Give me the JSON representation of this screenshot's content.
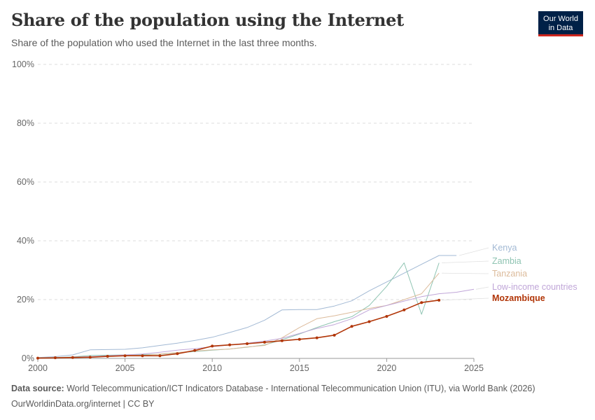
{
  "header": {
    "title": "Share of the population using the Internet",
    "subtitle": "Share of the population who used the Internet in the last three months.",
    "logo_line1": "Our World",
    "logo_line2": "in Data"
  },
  "footer": {
    "source_label": "Data source:",
    "source_text": "World Telecommunication/ICT Indicators Database - International Telecommunication Union (ITU), via World Bank (2026)",
    "url": "OurWorldinData.org/internet",
    "license": "| CC BY"
  },
  "colors": {
    "Kenya": "#a2b9d4",
    "Zambia": "#8fc4b2",
    "Tanzania": "#dcbb9b",
    "Low-income countries": "#c0a6d8",
    "Mozambique": "#b13507",
    "grid": "#dddddd",
    "axis_text": "#666666"
  },
  "chart_data": {
    "type": "line",
    "xlim": [
      2000,
      2025
    ],
    "ylim": [
      0,
      100
    ],
    "x_ticks": [
      2000,
      2005,
      2010,
      2015,
      2020,
      2025
    ],
    "x_tick_labels": [
      "2000",
      "2005",
      "2010",
      "2015",
      "2020",
      "2025"
    ],
    "y_ticks": [
      0,
      20,
      40,
      60,
      80,
      100
    ],
    "y_tick_labels": [
      "0%",
      "20%",
      "40%",
      "60%",
      "80%",
      "100%"
    ],
    "grid": true,
    "legend": "right-end labels",
    "series": [
      {
        "name": "Kenya",
        "x": [
          2000,
          2001,
          2002,
          2003,
          2004,
          2005,
          2006,
          2007,
          2008,
          2009,
          2010,
          2011,
          2012,
          2013,
          2014,
          2015,
          2016,
          2017,
          2018,
          2019,
          2020,
          2021,
          2022,
          2023,
          2024
        ],
        "y": [
          0.3,
          0.6,
          1.2,
          2.9,
          3.0,
          3.1,
          3.6,
          4.4,
          5.2,
          6.1,
          7.2,
          8.8,
          10.5,
          13.0,
          16.5,
          16.6,
          16.6,
          17.8,
          19.6,
          23.0,
          26.0,
          29.0,
          32.0,
          35.0,
          35.0
        ]
      },
      {
        "name": "Zambia",
        "x": [
          2000,
          2001,
          2002,
          2003,
          2004,
          2005,
          2006,
          2007,
          2008,
          2009,
          2010,
          2011,
          2012,
          2013,
          2014,
          2015,
          2016,
          2017,
          2018,
          2019,
          2020,
          2021,
          2022,
          2023
        ],
        "y": [
          0.2,
          0.3,
          0.5,
          1.0,
          1.1,
          1.2,
          1.3,
          1.4,
          1.9,
          2.3,
          2.8,
          3.2,
          3.8,
          4.6,
          6.3,
          8.3,
          10.5,
          12.5,
          14.2,
          18.0,
          24.5,
          32.5,
          15.0,
          32.5
        ]
      },
      {
        "name": "Tanzania",
        "x": [
          2000,
          2001,
          2002,
          2003,
          2004,
          2005,
          2006,
          2007,
          2008,
          2009,
          2010,
          2011,
          2012,
          2013,
          2014,
          2015,
          2016,
          2017,
          2018,
          2019,
          2020,
          2021,
          2022,
          2023
        ],
        "y": [
          0.1,
          0.2,
          0.2,
          0.5,
          0.7,
          1.1,
          1.0,
          1.5,
          2.0,
          2.5,
          2.9,
          3.2,
          3.9,
          4.4,
          7.0,
          10.5,
          13.5,
          14.5,
          15.7,
          17.0,
          18.0,
          20.0,
          22.0,
          29.0
        ]
      },
      {
        "name": "Low-income countries",
        "x": [
          2000,
          2001,
          2002,
          2003,
          2004,
          2005,
          2006,
          2007,
          2008,
          2009,
          2010,
          2011,
          2012,
          2013,
          2014,
          2015,
          2016,
          2017,
          2018,
          2019,
          2020,
          2021,
          2022,
          2023,
          2024,
          2025
        ],
        "y": [
          0.1,
          0.2,
          0.4,
          0.6,
          0.9,
          1.2,
          1.5,
          2.1,
          2.8,
          3.3,
          4.0,
          4.6,
          5.2,
          5.9,
          6.8,
          8.5,
          10.2,
          11.5,
          13.5,
          16.5,
          18.0,
          19.5,
          21.0,
          22.0,
          22.5,
          23.5
        ]
      },
      {
        "name": "Mozambique",
        "x": [
          2000,
          2001,
          2002,
          2003,
          2004,
          2005,
          2006,
          2007,
          2008,
          2009,
          2010,
          2011,
          2012,
          2013,
          2014,
          2015,
          2016,
          2017,
          2018,
          2019,
          2020,
          2021,
          2022,
          2023
        ],
        "y": [
          0.1,
          0.2,
          0.3,
          0.4,
          0.7,
          0.9,
          0.9,
          0.9,
          1.6,
          2.7,
          4.2,
          4.6,
          5.0,
          5.5,
          6.0,
          6.5,
          7.0,
          7.9,
          10.9,
          12.5,
          14.3,
          16.5,
          19.0,
          19.8
        ]
      }
    ],
    "highlighted_series": "Mozambique",
    "legend_order": [
      "Kenya",
      "Zambia",
      "Tanzania",
      "Low-income countries",
      "Mozambique"
    ]
  }
}
